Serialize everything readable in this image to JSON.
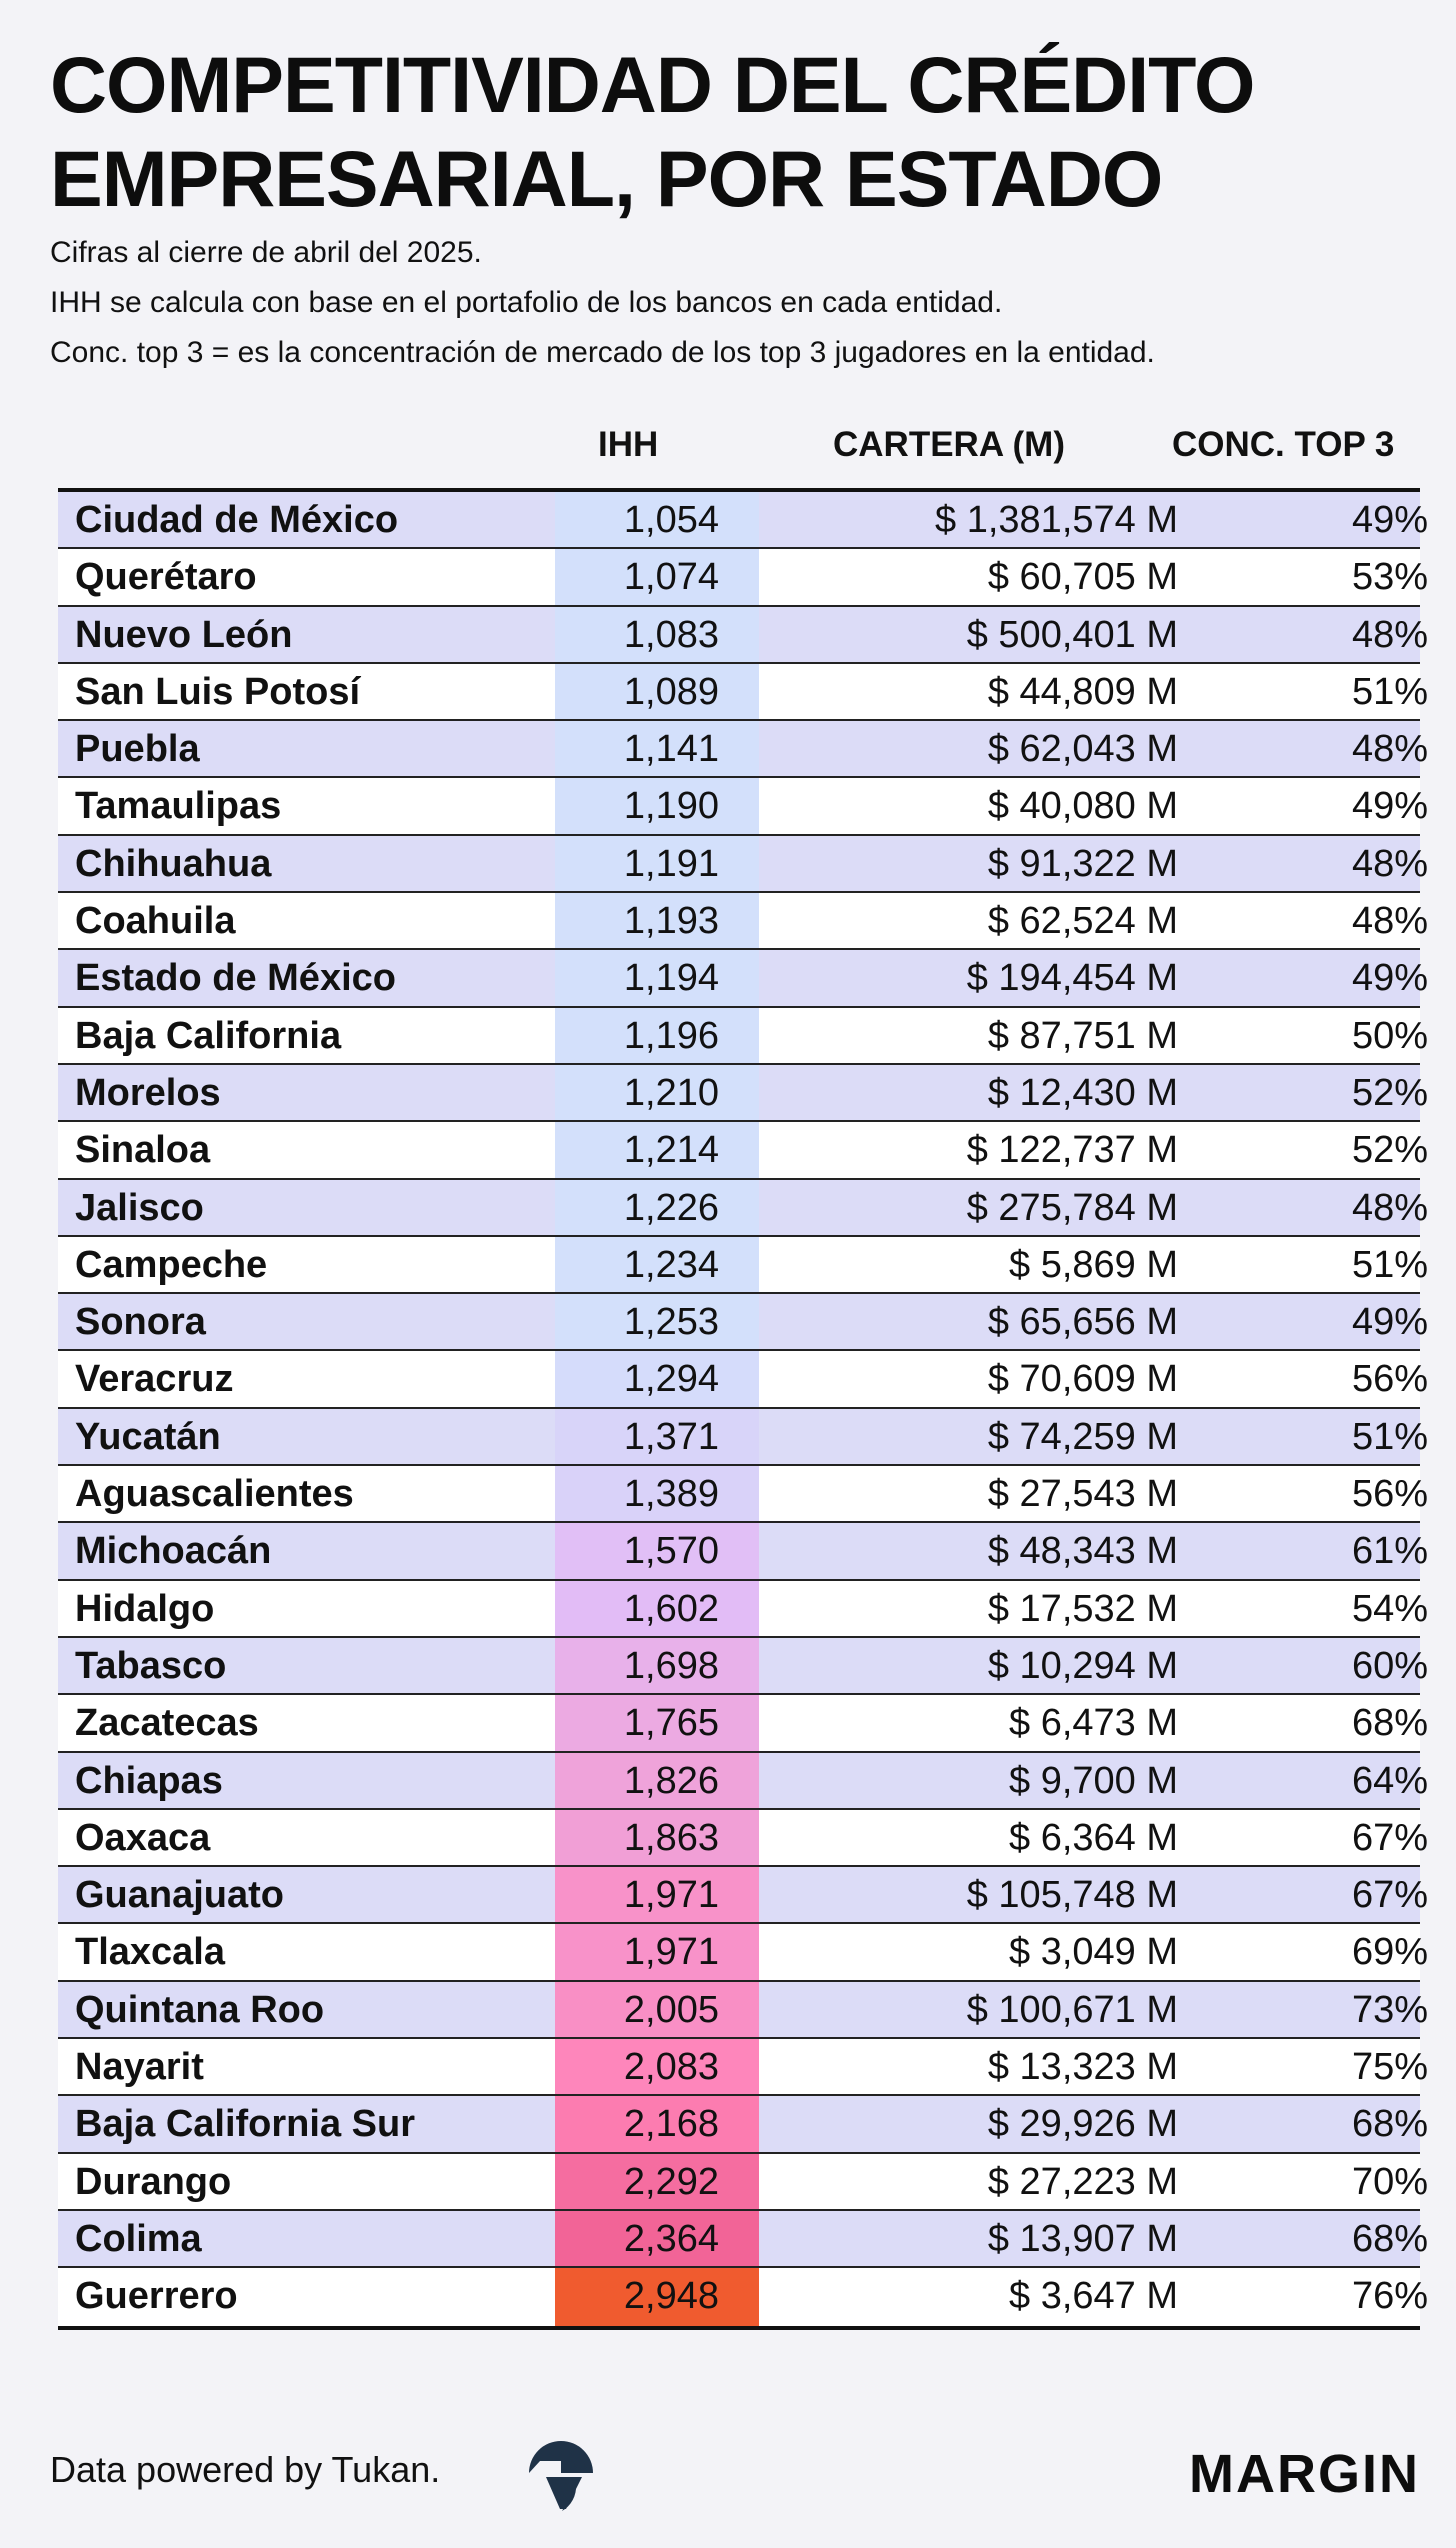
{
  "title": {
    "line1": "COMPETITIVIDAD DEL CRÉDITO",
    "line2": "EMPRESARIAL, POR ESTADO"
  },
  "subtitle": {
    "line1": "Cifras al cierre de abril del 2025.",
    "line2": "IHH se calcula con base en el portafolio de los bancos en cada entidad.",
    "line3": "Conc. top 3 = es la concentración de mercado de los top 3 jugadores en la entidad."
  },
  "table": {
    "headers": {
      "ihh": "IHH",
      "cartera": "CARTERA (M)",
      "conc": "CONC. TOP 3"
    },
    "ihh_color_scale": {
      "low": "#d3e0fb",
      "mid": "#e2bcf6",
      "high": "#ff84b9",
      "peak": "#f06092",
      "max": "#f05b2f"
    },
    "rows": [
      {
        "estado": "Ciudad de México",
        "ihh": "1,054",
        "ihh_value": 1054,
        "cartera": "$ 1,381,574 M",
        "conc": "49%"
      },
      {
        "estado": "Querétaro",
        "ihh": "1,074",
        "ihh_value": 1074,
        "cartera": "$ 60,705 M",
        "conc": "53%"
      },
      {
        "estado": "Nuevo León",
        "ihh": "1,083",
        "ihh_value": 1083,
        "cartera": "$ 500,401 M",
        "conc": "48%"
      },
      {
        "estado": "San Luis Potosí",
        "ihh": "1,089",
        "ihh_value": 1089,
        "cartera": "$ 44,809 M",
        "conc": "51%"
      },
      {
        "estado": "Puebla",
        "ihh": "1,141",
        "ihh_value": 1141,
        "cartera": "$ 62,043 M",
        "conc": "48%"
      },
      {
        "estado": "Tamaulipas",
        "ihh": "1,190",
        "ihh_value": 1190,
        "cartera": "$ 40,080 M",
        "conc": "49%"
      },
      {
        "estado": "Chihuahua",
        "ihh": "1,191",
        "ihh_value": 1191,
        "cartera": "$ 91,322 M",
        "conc": "48%"
      },
      {
        "estado": "Coahuila",
        "ihh": "1,193",
        "ihh_value": 1193,
        "cartera": "$ 62,524 M",
        "conc": "48%"
      },
      {
        "estado": "Estado de México",
        "ihh": "1,194",
        "ihh_value": 1194,
        "cartera": "$ 194,454 M",
        "conc": "49%"
      },
      {
        "estado": "Baja California",
        "ihh": "1,196",
        "ihh_value": 1196,
        "cartera": "$ 87,751 M",
        "conc": "50%"
      },
      {
        "estado": "Morelos",
        "ihh": "1,210",
        "ihh_value": 1210,
        "cartera": "$ 12,430 M",
        "conc": "52%"
      },
      {
        "estado": "Sinaloa",
        "ihh": "1,214",
        "ihh_value": 1214,
        "cartera": "$ 122,737 M",
        "conc": "52%"
      },
      {
        "estado": "Jalisco",
        "ihh": "1,226",
        "ihh_value": 1226,
        "cartera": "$ 275,784 M",
        "conc": "48%"
      },
      {
        "estado": "Campeche",
        "ihh": "1,234",
        "ihh_value": 1234,
        "cartera": "$ 5,869 M",
        "conc": "51%"
      },
      {
        "estado": "Sonora",
        "ihh": "1,253",
        "ihh_value": 1253,
        "cartera": "$ 65,656 M",
        "conc": "49%"
      },
      {
        "estado": "Veracruz",
        "ihh": "1,294",
        "ihh_value": 1294,
        "cartera": "$ 70,609 M",
        "conc": "56%"
      },
      {
        "estado": "Yucatán",
        "ihh": "1,371",
        "ihh_value": 1371,
        "cartera": "$ 74,259 M",
        "conc": "51%"
      },
      {
        "estado": "Aguascalientes",
        "ihh": "1,389",
        "ihh_value": 1389,
        "cartera": "$ 27,543 M",
        "conc": "56%"
      },
      {
        "estado": "Michoacán",
        "ihh": "1,570",
        "ihh_value": 1570,
        "cartera": "$ 48,343 M",
        "conc": "61%"
      },
      {
        "estado": "Hidalgo",
        "ihh": "1,602",
        "ihh_value": 1602,
        "cartera": "$ 17,532 M",
        "conc": "54%"
      },
      {
        "estado": "Tabasco",
        "ihh": "1,698",
        "ihh_value": 1698,
        "cartera": "$ 10,294 M",
        "conc": "60%"
      },
      {
        "estado": "Zacatecas",
        "ihh": "1,765",
        "ihh_value": 1765,
        "cartera": "$ 6,473 M",
        "conc": "68%"
      },
      {
        "estado": "Chiapas",
        "ihh": "1,826",
        "ihh_value": 1826,
        "cartera": "$ 9,700 M",
        "conc": "64%"
      },
      {
        "estado": "Oaxaca",
        "ihh": "1,863",
        "ihh_value": 1863,
        "cartera": "$ 6,364 M",
        "conc": "67%"
      },
      {
        "estado": "Guanajuato",
        "ihh": "1,971",
        "ihh_value": 1971,
        "cartera": "$ 105,748 M",
        "conc": "67%"
      },
      {
        "estado": "Tlaxcala",
        "ihh": "1,971",
        "ihh_value": 1971,
        "cartera": "$ 3,049 M",
        "conc": "69%"
      },
      {
        "estado": "Quintana Roo",
        "ihh": "2,005",
        "ihh_value": 2005,
        "cartera": "$ 100,671 M",
        "conc": "73%"
      },
      {
        "estado": "Nayarit",
        "ihh": "2,083",
        "ihh_value": 2083,
        "cartera": "$ 13,323 M",
        "conc": "75%"
      },
      {
        "estado": "Baja California Sur",
        "ihh": "2,168",
        "ihh_value": 2168,
        "cartera": "$ 29,926 M",
        "conc": "68%"
      },
      {
        "estado": "Durango",
        "ihh": "2,292",
        "ihh_value": 2292,
        "cartera": "$ 27,223 M",
        "conc": "70%"
      },
      {
        "estado": "Colima",
        "ihh": "2,364",
        "ihh_value": 2364,
        "cartera": "$ 13,907 M",
        "conc": "68%"
      },
      {
        "estado": "Guerrero",
        "ihh": "2,948",
        "ihh_value": 2948,
        "cartera": "$ 3,647 M",
        "conc": "76%"
      }
    ]
  },
  "footer": {
    "credit": "Data powered by Tukan.",
    "tukan_logo_icon": "tukan-logo-icon",
    "brand": "MARGIN"
  }
}
